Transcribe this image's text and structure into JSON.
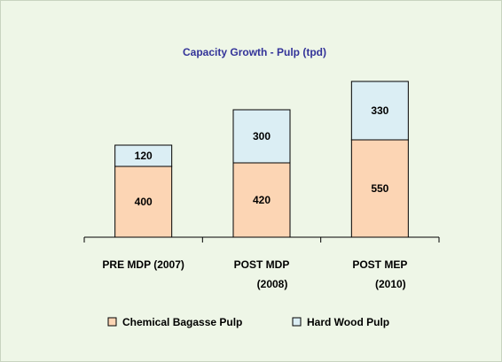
{
  "chart_data": {
    "type": "stacked_bar",
    "title": "Capacity Growth - Pulp (tpd)",
    "categories": [
      "PRE MDP (2007)",
      "POST MDP\n(2008)",
      "POST MEP\n(2010)"
    ],
    "series": [
      {
        "name": "Chemical Bagasse Pulp",
        "color": "#fcd5b4",
        "values": [
          400,
          420,
          550
        ]
      },
      {
        "name": "Hard Wood Pulp",
        "color": "#dbeef4",
        "values": [
          120,
          300,
          330
        ]
      }
    ],
    "ylim": [
      0,
      1000
    ],
    "legend": "bottom"
  }
}
